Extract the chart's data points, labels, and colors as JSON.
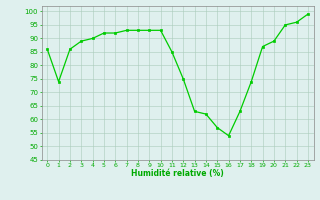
{
  "x": [
    0,
    1,
    2,
    3,
    4,
    5,
    6,
    7,
    8,
    9,
    10,
    11,
    12,
    13,
    14,
    15,
    16,
    17,
    18,
    19,
    20,
    21,
    22,
    23
  ],
  "y": [
    86,
    74,
    86,
    89,
    90,
    92,
    92,
    93,
    93,
    93,
    93,
    85,
    75,
    63,
    62,
    57,
    54,
    63,
    74,
    87,
    89,
    95,
    96,
    99
  ],
  "line_color": "#00cc00",
  "marker_color": "#00cc00",
  "bg_color": "#dff0ee",
  "grid_color": "#aaccbb",
  "xlabel": "Humidité relative (%)",
  "xlabel_color": "#00aa00",
  "tick_color": "#00aa00",
  "ylim": [
    45,
    102
  ],
  "yticks": [
    45,
    50,
    55,
    60,
    65,
    70,
    75,
    80,
    85,
    90,
    95,
    100
  ],
  "xlim": [
    -0.5,
    23.5
  ]
}
